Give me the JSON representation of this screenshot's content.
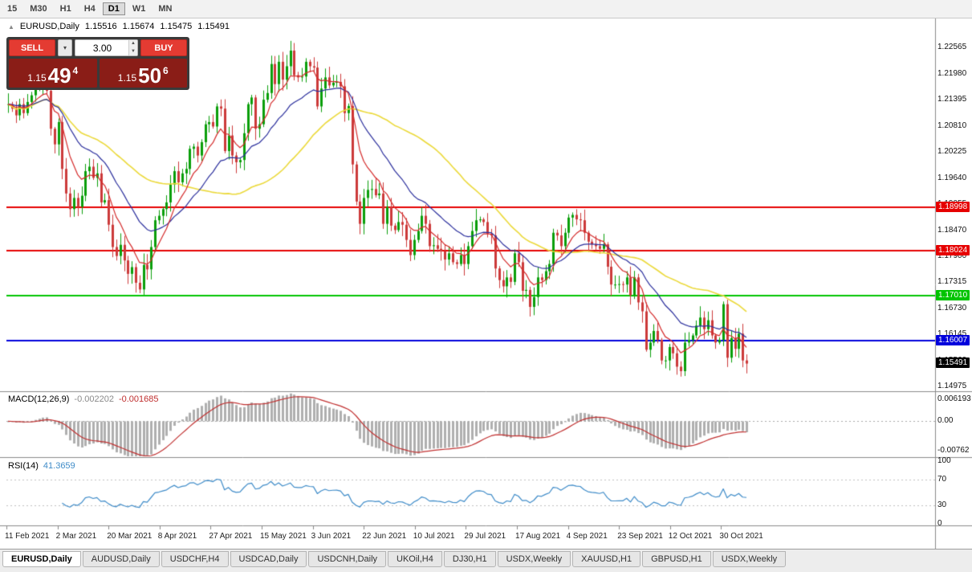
{
  "toolbar": {
    "timeframes": [
      "15",
      "M30",
      "H1",
      "H4",
      "D1",
      "W1",
      "MN"
    ],
    "active_index": 4
  },
  "icons": {
    "symbol_arrow": "▲",
    "dropdown_caret": "▾",
    "spin_up": "▲",
    "spin_down": "▼"
  },
  "header": {
    "symbol": "EURUSD,Daily",
    "open": "1.15516",
    "high": "1.15674",
    "low": "1.15475",
    "close": "1.15491"
  },
  "trade_panel": {
    "sell_label": "SELL",
    "buy_label": "BUY",
    "volume": "3.00",
    "sell_price": {
      "prefix": "1.15",
      "big": "49",
      "sup": "4"
    },
    "buy_price": {
      "prefix": "1.15",
      "big": "50",
      "sup": "6"
    }
  },
  "chart_data": {
    "type": "candlestick",
    "symbol": "EURUSD",
    "timeframe": "Daily",
    "price_view_max": 1.2322,
    "price_view_min": 1.1487,
    "candle_up_color": "#0A9E0A",
    "candle_down_color": "#CC3A3A",
    "closes": [
      1.213,
      1.212,
      1.2105,
      1.213,
      1.211,
      1.2135,
      1.215,
      1.2165,
      1.217,
      1.2175,
      1.216,
      1.2075,
      1.204,
      1.209,
      1.1985,
      1.193,
      1.1895,
      1.192,
      1.19,
      1.1925,
      1.198,
      1.199,
      1.1965,
      1.1975,
      1.191,
      1.1915,
      1.186,
      1.181,
      1.179,
      1.1815,
      1.178,
      1.175,
      1.1765,
      1.173,
      1.1715,
      1.177,
      1.176,
      1.181,
      1.187,
      1.188,
      1.1895,
      1.191,
      1.195,
      1.198,
      1.1955,
      1.1975,
      1.1985,
      1.203,
      1.2035,
      1.2015,
      1.2045,
      1.2085,
      1.209,
      1.208,
      1.2125,
      1.212,
      1.2025,
      1.206,
      1.2015,
      1.2,
      1.2005,
      1.2065,
      1.213,
      1.2145,
      1.2075,
      1.2085,
      1.214,
      1.2155,
      1.222,
      1.2175,
      1.2225,
      1.2185,
      1.2215,
      1.225,
      1.2195,
      1.219,
      1.2192,
      1.2225,
      1.2215,
      1.2212,
      1.2125,
      1.2165,
      1.219,
      1.2172,
      1.2178,
      1.218,
      1.217,
      1.211,
      1.2126,
      1.1995,
      1.1912,
      1.1862,
      1.192,
      1.1938,
      1.194,
      1.1926,
      1.193,
      1.1862,
      1.19,
      1.1858,
      1.1848,
      1.1866,
      1.186,
      1.1826,
      1.1792,
      1.1826,
      1.1846,
      1.188,
      1.1862,
      1.1812,
      1.1814,
      1.1806,
      1.18,
      1.1782,
      1.1796,
      1.1776,
      1.1772,
      1.1792,
      1.1772,
      1.1812,
      1.1846,
      1.187,
      1.1872,
      1.1866,
      1.184,
      1.1836,
      1.1762,
      1.1736,
      1.1722,
      1.1742,
      1.1732,
      1.1796,
      1.1776,
      1.1712,
      1.1714,
      1.1676,
      1.1698,
      1.1742,
      1.1736,
      1.1756,
      1.1772,
      1.1842,
      1.1836,
      1.1812,
      1.1842,
      1.1876,
      1.1882,
      1.1872,
      1.187,
      1.1842,
      1.1822,
      1.1816,
      1.1812,
      1.1806,
      1.1816,
      1.1766,
      1.1726,
      1.1726,
      1.1727,
      1.1726,
      1.1742,
      1.1702,
      1.1742,
      1.1686,
      1.1666,
      1.158,
      1.1596,
      1.1622,
      1.1602,
      1.1556,
      1.1556,
      1.1586,
      1.1572,
      1.1542,
      1.1532,
      1.1596,
      1.1602,
      1.1612,
      1.1634,
      1.1652,
      1.1626,
      1.1646,
      1.1612,
      1.1596,
      1.1602,
      1.1682,
      1.1562,
      1.1606,
      1.1582,
      1.1616,
      1.1556,
      1.1549
    ],
    "moving_averages": [
      {
        "type": "sma",
        "period": 45,
        "color": "#EBD93B",
        "width": 1.6
      },
      {
        "type": "ema",
        "period": 21,
        "color": "#2A2E9C",
        "width": 1.2
      },
      {
        "type": "ema",
        "period": 8,
        "color": "#D42A2A",
        "width": 1.2
      }
    ],
    "axis_ticks": [
      "1.22565",
      "1.21980",
      "1.21395",
      "1.20810",
      "1.20225",
      "1.19640",
      "1.19055",
      "1.18470",
      "1.17900",
      "1.17315",
      "1.16730",
      "1.16145",
      "1.15560",
      "1.14975"
    ],
    "level_lines": [
      {
        "price": 1.18998,
        "label": "1.18998",
        "color": "#E60000"
      },
      {
        "price": 1.18024,
        "label": "1.18024",
        "color": "#E60000"
      },
      {
        "price": 1.1701,
        "label": "1.17010",
        "color": "#00C400"
      },
      {
        "price": 1.16007,
        "label": "1.16007",
        "color": "#0000DC"
      }
    ],
    "current_price": {
      "value": 1.15491,
      "label": "1.15491",
      "color": "#000000"
    },
    "macd": {
      "header_label": "MACD(12,26,9)",
      "value_main": "-0.002202",
      "value_signal": "-0.001685",
      "fast": 12,
      "slow": 26,
      "signal": 9,
      "scale_max": 0.006193,
      "scale_min": -0.00762,
      "axis_labels": [
        "0.006193",
        "0.00",
        "-0.00762"
      ],
      "histogram_color": "#AFAFAF",
      "signal_color": "#C03030"
    },
    "rsi": {
      "header_label": "RSI(14)",
      "value": "41.3659",
      "period": 14,
      "levels": [
        70,
        30
      ],
      "axis_labels": [
        "100",
        "70",
        "30",
        "0"
      ],
      "line_color": "#3E8BC8"
    },
    "dates": [
      "11 Feb 2021",
      "2 Mar 2021",
      "20 Mar 2021",
      "8 Apr 2021",
      "27 Apr 2021",
      "15 May 2021",
      "3 Jun 2021",
      "22 Jun 2021",
      "10 Jul 2021",
      "29 Jul 2021",
      "17 Aug 2021",
      "4 Sep 2021",
      "23 Sep 2021",
      "12 Oct 2021",
      "30 Oct 2021"
    ]
  },
  "tabs": {
    "items": [
      "EURUSD,Daily",
      "AUDUSD,Daily",
      "USDCHF,H4",
      "USDCAD,Daily",
      "USDCNH,Daily",
      "UKOil,H4",
      "DJ30,H1",
      "USDX,Weekly",
      "XAUUSD,H1",
      "GBPUSD,H1",
      "USDX,Weekly"
    ],
    "active_index": 0
  }
}
